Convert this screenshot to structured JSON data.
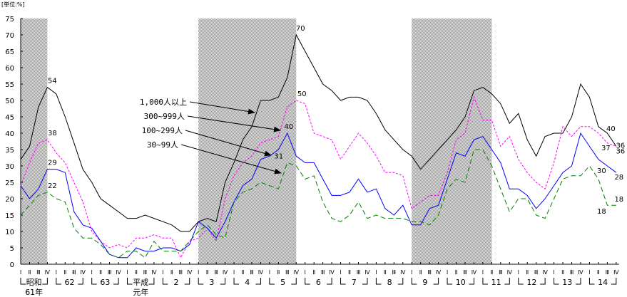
{
  "chart_data": {
    "type": "line",
    "unit_label": "[単位:%]",
    "ylim": [
      0,
      75
    ],
    "y_ticks": [
      0,
      5,
      10,
      15,
      20,
      25,
      30,
      35,
      40,
      45,
      50,
      55,
      60,
      65,
      70,
      75
    ],
    "grid": false,
    "quarter_labels": [
      "Ⅰ",
      "Ⅱ",
      "Ⅲ",
      "Ⅳ"
    ],
    "years": [
      {
        "line1": "昭和",
        "line2": "61年"
      },
      {
        "line1": "62",
        "line2": ""
      },
      {
        "line1": "63",
        "line2": ""
      },
      {
        "line1": "平成",
        "line2": "元年"
      },
      {
        "line1": "2",
        "line2": ""
      },
      {
        "line1": "3",
        "line2": ""
      },
      {
        "line1": "4",
        "line2": ""
      },
      {
        "line1": "5",
        "line2": ""
      },
      {
        "line1": "6",
        "line2": ""
      },
      {
        "line1": "7",
        "line2": ""
      },
      {
        "line1": "8",
        "line2": ""
      },
      {
        "line1": "9",
        "line2": ""
      },
      {
        "line1": "10",
        "line2": ""
      },
      {
        "line1": "11",
        "line2": ""
      },
      {
        "line1": "12",
        "line2": ""
      },
      {
        "line1": "13",
        "line2": ""
      },
      {
        "line1": "14",
        "line2": ""
      }
    ],
    "shaded_periods": [
      {
        "from": "昭和61 Ⅰ",
        "to": "昭和61 Ⅳ",
        "start_index": 0,
        "end_index": 3
      },
      {
        "from": "平成3 Ⅰ",
        "to": "平成5 Ⅳ",
        "start_index": 20,
        "end_index": 31
      },
      {
        "from": "平成9 Ⅰ",
        "to": "平成11 Ⅱ",
        "start_index": 44,
        "end_index": 53
      }
    ],
    "series": [
      {
        "name": "1,000人以上",
        "color": "#000000",
        "style": "solid",
        "values": [
          32,
          36,
          48,
          54,
          52,
          45,
          37,
          29,
          25,
          20,
          18,
          16,
          14,
          14,
          15,
          14,
          13,
          12,
          10,
          10,
          13,
          14,
          13,
          25,
          31,
          38,
          42,
          50,
          50,
          51,
          57,
          70,
          65,
          60,
          55,
          53,
          50,
          51,
          51,
          50,
          46,
          41,
          38,
          35,
          33,
          29,
          32,
          35,
          38,
          41,
          45,
          53,
          54,
          52,
          49,
          43,
          46,
          38,
          33,
          39,
          40,
          40,
          45,
          55,
          51,
          42,
          40,
          36
        ]
      },
      {
        "name": "300~999人",
        "color": "#ff00ff",
        "style": "dotted",
        "values": [
          24,
          31,
          37,
          38,
          34,
          31,
          25,
          19,
          10,
          7,
          5,
          6,
          5,
          8,
          8,
          9,
          8,
          8,
          2,
          7,
          8,
          11,
          7,
          20,
          27,
          31,
          33,
          37,
          38,
          39,
          48,
          50,
          49,
          40,
          39,
          38,
          32,
          36,
          40,
          37,
          33,
          28,
          28,
          27,
          17,
          19,
          21,
          21,
          28,
          38,
          40,
          51,
          44,
          44,
          36,
          39,
          32,
          28,
          25,
          23,
          31,
          42,
          39,
          42,
          42,
          40,
          37,
          36
        ]
      },
      {
        "name": "100~299人",
        "color": "#0000ff",
        "style": "solid",
        "values": [
          24,
          20,
          23,
          29,
          29,
          28,
          16,
          12,
          11,
          7,
          3,
          2,
          2,
          5,
          4,
          4,
          5,
          5,
          4,
          6,
          13,
          11,
          8,
          13,
          19,
          24,
          26,
          32,
          33,
          35,
          40,
          33,
          31,
          31,
          26,
          21,
          21,
          22,
          26,
          22,
          23,
          17,
          15,
          18,
          12,
          12,
          17,
          18,
          26,
          34,
          33,
          38,
          39,
          35,
          31,
          23,
          23,
          21,
          17,
          20,
          24,
          28,
          30,
          40,
          36,
          32,
          30,
          28
        ]
      },
      {
        "name": "30~99人",
        "color": "#008000",
        "style": "dashed",
        "values": [
          15,
          18,
          21,
          22,
          20,
          19,
          11,
          8,
          8,
          6,
          3,
          2,
          4,
          4,
          2,
          7,
          4,
          4,
          4,
          7,
          10,
          12,
          9,
          8,
          19,
          22,
          23,
          25,
          24,
          23,
          31,
          30,
          26,
          27,
          19,
          14,
          13,
          15,
          19,
          14,
          15,
          14,
          14,
          14,
          13,
          13,
          12,
          15,
          23,
          26,
          25,
          35,
          35,
          30,
          23,
          16,
          20,
          20,
          15,
          14,
          20,
          26,
          27,
          27,
          30,
          26,
          18,
          18
        ]
      }
    ],
    "data_labels": [
      {
        "series": 0,
        "index": 3,
        "text": "54"
      },
      {
        "series": 1,
        "index": 3,
        "text": "38"
      },
      {
        "series": 2,
        "index": 3,
        "text": "29"
      },
      {
        "series": 3,
        "index": 3,
        "text": "22"
      },
      {
        "series": 0,
        "index": 31,
        "text": "70"
      },
      {
        "series": 1,
        "index": 31,
        "text": "50"
      },
      {
        "series": 2,
        "index": 30,
        "text": "40"
      },
      {
        "series": 3,
        "index": 30,
        "text": "31"
      },
      {
        "series": 0,
        "index": 66,
        "text": "40"
      },
      {
        "series": 0,
        "index": 67,
        "text": "36"
      },
      {
        "series": 1,
        "index": 66,
        "text": "37"
      },
      {
        "series": 1,
        "index": 67,
        "text": "36"
      },
      {
        "series": 2,
        "index": 66,
        "text": "30"
      },
      {
        "series": 2,
        "index": 67,
        "text": "28"
      },
      {
        "series": 3,
        "index": 66,
        "text": "18"
      },
      {
        "series": 3,
        "index": 67,
        "text": "18"
      }
    ]
  }
}
